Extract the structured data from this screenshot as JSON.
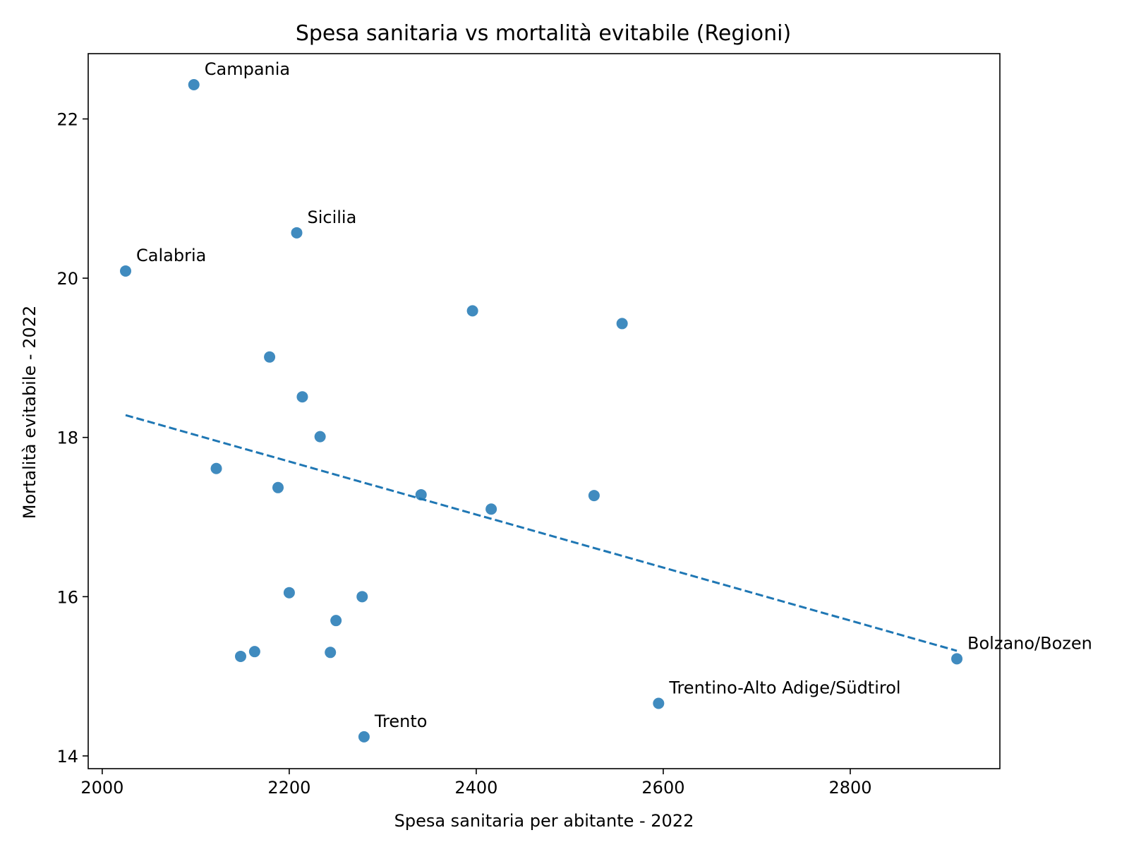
{
  "chart_data": {
    "type": "scatter",
    "title": "Spesa sanitaria vs mortalità evitabile (Regioni)",
    "xlabel": "Spesa sanitaria per abitante - 2022",
    "ylabel": "Mortalità evitabile - 2022",
    "xlim": [
      1985,
      2960
    ],
    "ylim": [
      13.84,
      22.82
    ],
    "xticks": [
      2000,
      2200,
      2400,
      2600,
      2800
    ],
    "yticks": [
      14,
      16,
      18,
      20,
      22
    ],
    "grid": false,
    "legend": "none",
    "colors": {
      "points": "#1f77b4",
      "trend": "#1f77b4"
    },
    "points": [
      {
        "x": 2098,
        "y": 22.43,
        "label": "Campania"
      },
      {
        "x": 2208,
        "y": 20.57,
        "label": "Sicilia"
      },
      {
        "x": 2025,
        "y": 20.09,
        "label": "Calabria"
      },
      {
        "x": 2396,
        "y": 19.59,
        "label": ""
      },
      {
        "x": 2556,
        "y": 19.43,
        "label": ""
      },
      {
        "x": 2179,
        "y": 19.01,
        "label": ""
      },
      {
        "x": 2214,
        "y": 18.51,
        "label": ""
      },
      {
        "x": 2233,
        "y": 18.01,
        "label": ""
      },
      {
        "x": 2122,
        "y": 17.61,
        "label": ""
      },
      {
        "x": 2188,
        "y": 17.37,
        "label": ""
      },
      {
        "x": 2341,
        "y": 17.28,
        "label": ""
      },
      {
        "x": 2526,
        "y": 17.27,
        "label": ""
      },
      {
        "x": 2416,
        "y": 17.1,
        "label": ""
      },
      {
        "x": 2200,
        "y": 16.05,
        "label": ""
      },
      {
        "x": 2278,
        "y": 16.0,
        "label": ""
      },
      {
        "x": 2250,
        "y": 15.7,
        "label": ""
      },
      {
        "x": 2163,
        "y": 15.31,
        "label": ""
      },
      {
        "x": 2244,
        "y": 15.3,
        "label": ""
      },
      {
        "x": 2148,
        "y": 15.25,
        "label": ""
      },
      {
        "x": 2914,
        "y": 15.22,
        "label": "Bolzano/Bozen"
      },
      {
        "x": 2595,
        "y": 14.66,
        "label": "Trentino-Alto Adige/Südtirol"
      },
      {
        "x": 2280,
        "y": 14.24,
        "label": "Trento"
      }
    ],
    "trend_line": {
      "style": "dashed",
      "x": [
        2025,
        2914
      ],
      "y": [
        18.28,
        15.32
      ]
    }
  }
}
